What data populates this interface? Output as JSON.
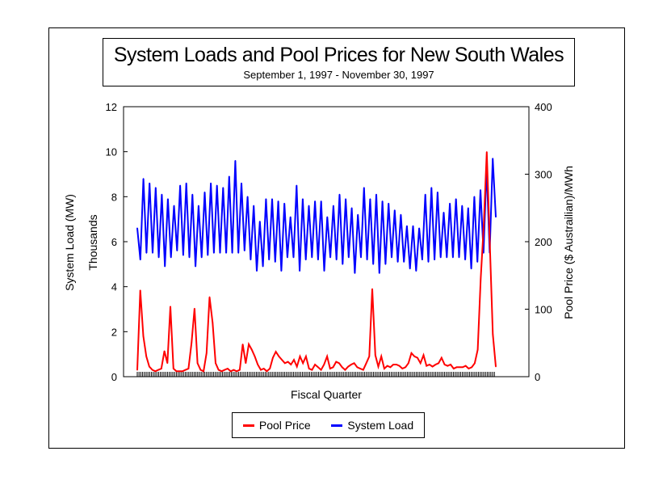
{
  "chart_data": {
    "type": "line",
    "title": "System Loads and Pool Prices for New South Wales",
    "subtitle": "September 1, 1997 - November 30, 1997",
    "xlabel": "Fiscal Quarter",
    "ylabel_left": "System Load (MW)",
    "ylabel_left_units": "Thousands",
    "ylabel_right": "Pool Price ($ Austrailian)/MWh",
    "ylim_left": [
      0,
      12
    ],
    "ylim_right": [
      0,
      400
    ],
    "yticks_left": [
      "0",
      "2",
      "4",
      "6",
      "8",
      "10",
      "12"
    ],
    "yticks_right": [
      "0",
      "100",
      "200",
      "300",
      "400"
    ],
    "legend_position": "bottom",
    "grid": false,
    "colors": {
      "price": "#ff0000",
      "load": "#0000ff"
    },
    "series": [
      {
        "name": "Pool Price",
        "axis": "right",
        "values": [
          10,
          128,
          60,
          30,
          15,
          10,
          8,
          10,
          12,
          38,
          20,
          104,
          12,
          8,
          8,
          8,
          10,
          12,
          50,
          101,
          20,
          10,
          8,
          35,
          118,
          80,
          20,
          10,
          8,
          10,
          12,
          8,
          10,
          8,
          10,
          48,
          20,
          48,
          40,
          30,
          18,
          10,
          12,
          8,
          12,
          28,
          37,
          30,
          25,
          20,
          22,
          18,
          25,
          15,
          30,
          20,
          30,
          12,
          10,
          18,
          14,
          10,
          18,
          30,
          12,
          14,
          22,
          20,
          14,
          10,
          15,
          18,
          20,
          14,
          12,
          10,
          20,
          30,
          130,
          32,
          15,
          30,
          12,
          16,
          14,
          18,
          18,
          16,
          12,
          14,
          20,
          35,
          30,
          28,
          20,
          32,
          16,
          18,
          15,
          18,
          20,
          28,
          18,
          16,
          18,
          12,
          14,
          14,
          14,
          16,
          12,
          14,
          20,
          40,
          145,
          225,
          333,
          200,
          63,
          15
        ]
      },
      {
        "name": "System Load",
        "axis": "left",
        "values": [
          6.6,
          5.2,
          8.8,
          5.5,
          8.6,
          5.5,
          8.4,
          5.3,
          8.1,
          4.9,
          7.9,
          5.3,
          7.6,
          5.6,
          8.5,
          5.4,
          8.6,
          5.3,
          8.1,
          4.9,
          7.6,
          5.3,
          8.2,
          5.4,
          8.6,
          5.5,
          8.5,
          5.5,
          8.4,
          5.5,
          8.9,
          5.5,
          9.6,
          5.5,
          8.6,
          5.6,
          8.0,
          5.2,
          7.6,
          4.7,
          6.9,
          4.9,
          7.9,
          5.2,
          7.9,
          5.1,
          7.8,
          4.7,
          7.7,
          5.3,
          7.1,
          5.3,
          8.5,
          4.7,
          7.9,
          5.2,
          7.6,
          5.3,
          7.8,
          5.2,
          7.8,
          4.7,
          7.1,
          5.3,
          7.6,
          5.2,
          8.1,
          5.0,
          7.9,
          5.3,
          7.5,
          4.6,
          7.2,
          5.3,
          8.4,
          5.2,
          7.9,
          5.0,
          8.1,
          4.6,
          7.8,
          5.0,
          7.7,
          5.3,
          7.4,
          5.1,
          7.2,
          5.1,
          6.7,
          4.8,
          6.7,
          4.7,
          6.6,
          5.2,
          8.1,
          5.1,
          8.4,
          5.2,
          8.2,
          5.3,
          7.3,
          5.3,
          7.7,
          5.3,
          7.9,
          5.3,
          7.6,
          5.2,
          7.5,
          4.8,
          8.0,
          5.1,
          8.3,
          5.5,
          9.3,
          5.5,
          9.7,
          7.1
        ]
      }
    ]
  }
}
